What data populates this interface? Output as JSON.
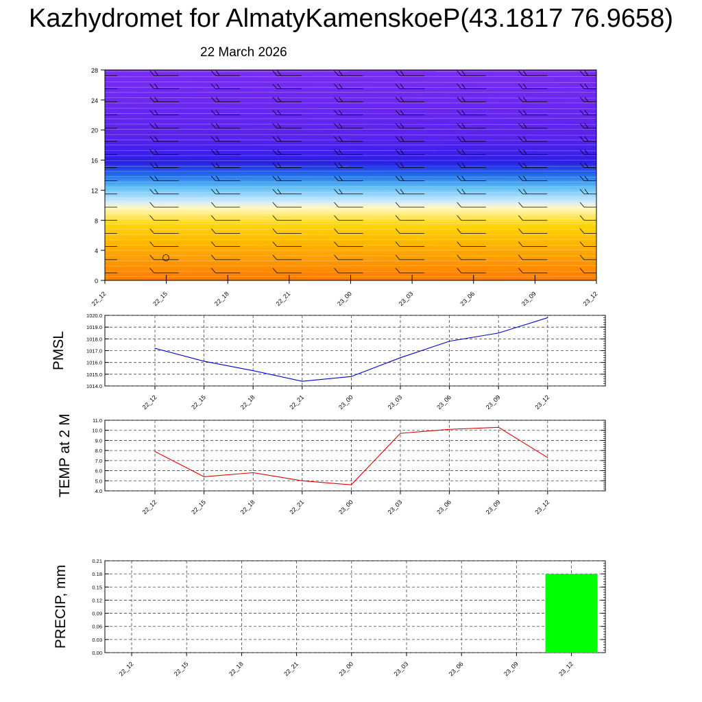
{
  "header": {
    "title": "Kazhydromet for AlmatyKamenskoeP(43.1817 76.9658)",
    "subtitle": "22 March 2026"
  },
  "colors": {
    "pmsl_line": "#0000cc",
    "temp_line": "#dd0000",
    "precip_bar": "#00ff00",
    "grid": "#555555"
  },
  "chart_data": [
    {
      "type": "heatmap",
      "name": "cross-section",
      "ylim": [
        0,
        28
      ],
      "y_ticks": [
        "0",
        "4",
        "8",
        "12",
        "16",
        "20",
        "24",
        "28"
      ],
      "x_ticks": [
        "22_12",
        "22_15",
        "22_18",
        "22_21",
        "23_00",
        "23_03",
        "23_06",
        "23_09",
        "23_12"
      ],
      "color_bands_bottom_to_top": [
        "#ff7a00",
        "#ffa800",
        "#ffd400",
        "#fff8c0",
        "#cfeaff",
        "#5fc0f5",
        "#1f6ee8",
        "#2a1ee6",
        "#5a22ee",
        "#7a2cf2"
      ]
    },
    {
      "type": "line",
      "ylabel": "PMSL",
      "ylim": [
        1014.0,
        1020.0
      ],
      "y_ticks": [
        "1014.0",
        "1015.0",
        "1016.0",
        "1017.0",
        "1018.0",
        "1019.0",
        "1020.0"
      ],
      "x_ticks": [
        "22_12",
        "22_15",
        "22_18",
        "22_21",
        "23_00",
        "23_03",
        "23_06",
        "23_09",
        "23_12"
      ],
      "values": [
        1017.2,
        1016.1,
        1015.3,
        1014.4,
        1014.8,
        1016.4,
        1017.8,
        1018.5,
        1019.8
      ]
    },
    {
      "type": "line",
      "ylabel": "TEMP at 2 M",
      "ylim": [
        4.0,
        11.0
      ],
      "y_ticks": [
        "4.0",
        "5.0",
        "6.0",
        "7.0",
        "8.0",
        "9.0",
        "10.0",
        "11.0"
      ],
      "x_ticks": [
        "22_12",
        "22_15",
        "22_18",
        "22_21",
        "23_00",
        "23_03",
        "23_06",
        "23_09",
        "23_12"
      ],
      "values": [
        7.9,
        5.4,
        5.8,
        5.0,
        4.6,
        9.7,
        10.1,
        10.3,
        7.3
      ]
    },
    {
      "type": "bar",
      "ylabel": "PRECIP, mm",
      "ylim": [
        0.0,
        0.21
      ],
      "y_ticks": [
        "0.00",
        "0.03",
        "0.06",
        "0.09",
        "0.12",
        "0.15",
        "0.18",
        "0.21"
      ],
      "categories": [
        "22_12",
        "22_15",
        "22_18",
        "22_21",
        "23_00",
        "23_03",
        "23_06",
        "23_09",
        "23_12"
      ],
      "values": [
        0,
        0,
        0,
        0,
        0,
        0,
        0,
        0,
        0.18
      ]
    }
  ]
}
